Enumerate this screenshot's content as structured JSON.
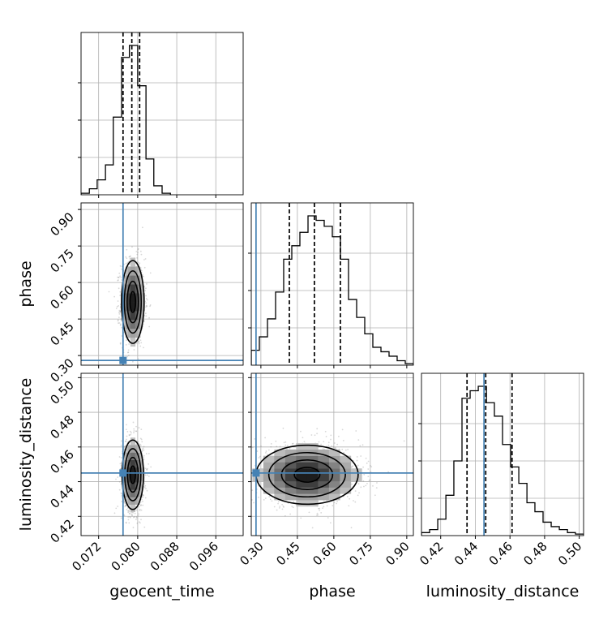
{
  "chart_data": {
    "type": "corner",
    "parameters": [
      "geocent_time",
      "phase",
      "luminosity_distance"
    ],
    "axis_labels": {
      "geocent_time": "geocent_time",
      "phase": "phase",
      "luminosity_distance": "luminosity_distance"
    },
    "ranges": {
      "geocent_time": [
        0.0684,
        0.1016
      ],
      "phase": [
        0.2604,
        0.9271
      ],
      "luminosity_distance": [
        0.4089,
        0.5025
      ]
    },
    "ticks": {
      "geocent_time": [
        {
          "value": 0.072,
          "label": "0.072"
        },
        {
          "value": 0.08,
          "label": "0.080"
        },
        {
          "value": 0.088,
          "label": "0.088"
        },
        {
          "value": 0.096,
          "label": "0.096"
        }
      ],
      "phase": [
        {
          "value": 0.3,
          "label": "0.30"
        },
        {
          "value": 0.45,
          "label": "0.45"
        },
        {
          "value": 0.6,
          "label": "0.60"
        },
        {
          "value": 0.75,
          "label": "0.75"
        },
        {
          "value": 0.9,
          "label": "0.90"
        }
      ],
      "luminosity_distance": [
        {
          "value": 0.42,
          "label": "0.42"
        },
        {
          "value": 0.44,
          "label": "0.44"
        },
        {
          "value": 0.46,
          "label": "0.46"
        },
        {
          "value": 0.48,
          "label": "0.48"
        },
        {
          "value": 0.5,
          "label": "0.50"
        }
      ]
    },
    "injected_truths": {
      "geocent_time": 0.077,
      "phase": 0.28,
      "luminosity_distance": 0.445
    },
    "quantiles": {
      "geocent_time": [
        0.077,
        0.0788,
        0.0804
      ],
      "phase": [
        0.417,
        0.52,
        0.627
      ],
      "luminosity_distance": [
        0.4352,
        0.446,
        0.4612
      ]
    },
    "histograms_1d": {
      "geocent_time": {
        "edges": [
          0.0684,
          0.0701,
          0.0717,
          0.0734,
          0.075,
          0.0767,
          0.0783,
          0.08,
          0.0817,
          0.0833,
          0.085,
          0.0867
        ],
        "values": [
          0.01,
          0.04,
          0.1,
          0.2,
          0.52,
          0.92,
          1.0,
          0.73,
          0.24,
          0.06,
          0.01
        ]
      },
      "phase": {
        "edges": [
          0.2604,
          0.2937,
          0.3271,
          0.3604,
          0.3937,
          0.4271,
          0.4604,
          0.4938,
          0.5271,
          0.5604,
          0.5938,
          0.6271,
          0.6604,
          0.6938,
          0.7271,
          0.7604,
          0.7938,
          0.8271,
          0.8604,
          0.8938,
          0.9271
        ],
        "values": [
          0.1,
          0.19,
          0.31,
          0.49,
          0.71,
          0.8,
          0.89,
          1.0,
          0.97,
          0.93,
          0.86,
          0.71,
          0.44,
          0.32,
          0.21,
          0.12,
          0.09,
          0.06,
          0.03,
          0.01
        ]
      },
      "luminosity_distance": {
        "edges": [
          0.4089,
          0.4136,
          0.4183,
          0.423,
          0.4276,
          0.4323,
          0.437,
          0.4417,
          0.4464,
          0.451,
          0.4557,
          0.4604,
          0.4651,
          0.4698,
          0.4744,
          0.4791,
          0.4838,
          0.4885,
          0.4932,
          0.4978,
          0.5025
        ],
        "values": [
          0.02,
          0.04,
          0.11,
          0.27,
          0.5,
          0.92,
          0.97,
          1.0,
          0.89,
          0.8,
          0.61,
          0.46,
          0.35,
          0.22,
          0.16,
          0.09,
          0.06,
          0.04,
          0.02,
          0.01
        ]
      }
    },
    "density_2d": [
      {
        "x": "geocent_time",
        "y": "phase",
        "center": [
          0.079,
          0.52
        ],
        "sigma": [
          0.00115,
          0.085
        ]
      },
      {
        "x": "geocent_time",
        "y": "luminosity_distance",
        "center": [
          0.079,
          0.444
        ],
        "sigma": [
          0.0011,
          0.01
        ]
      },
      {
        "x": "phase",
        "y": "luminosity_distance",
        "center": [
          0.49,
          0.444
        ],
        "sigma": [
          0.105,
          0.0085
        ]
      }
    ],
    "grid": true,
    "truth_color": "#4682b4",
    "hist_color": "#000000",
    "scatter_color": "#7f7f7f"
  }
}
